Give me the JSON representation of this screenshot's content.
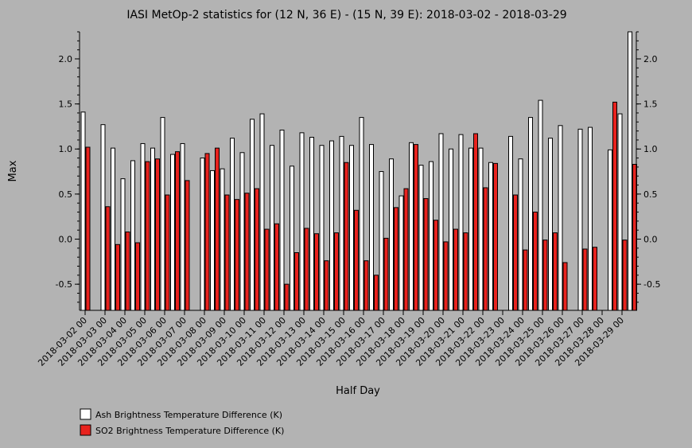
{
  "chart_data": {
    "type": "bar",
    "title": "IASI MetOp-2 statistics for (12 N, 36 E) - (15 N, 39 E): 2018-03-02 - 2018-03-29",
    "xlabel": "Half Day",
    "ylabel": "Max",
    "ylim": [
      -0.79,
      2.3
    ],
    "yticks": [
      -0.5,
      0.0,
      0.5,
      1.0,
      1.5,
      2.0
    ],
    "ytick_labels": [
      "-0.5",
      "0.0",
      "0.5",
      "1.0",
      "1.5",
      "2.0"
    ],
    "grid": false,
    "legend_position": "bottom-left",
    "categories": [
      "2018-03-02 00",
      "2018-03-02 12",
      "2018-03-03 00",
      "2018-03-03 12",
      "2018-03-04 00",
      "2018-03-04 12",
      "2018-03-05 00",
      "2018-03-05 12",
      "2018-03-06 00",
      "2018-03-06 12",
      "2018-03-07 00",
      "2018-03-07 12",
      "2018-03-08 00",
      "2018-03-08 12",
      "2018-03-09 00",
      "2018-03-09 12",
      "2018-03-10 00",
      "2018-03-10 12",
      "2018-03-11 00",
      "2018-03-11 12",
      "2018-03-12 00",
      "2018-03-12 12",
      "2018-03-13 00",
      "2018-03-13 12",
      "2018-03-14 00",
      "2018-03-14 12",
      "2018-03-15 00",
      "2018-03-15 12",
      "2018-03-16 00",
      "2018-03-16 12",
      "2018-03-17 00",
      "2018-03-17 12",
      "2018-03-18 00",
      "2018-03-18 12",
      "2018-03-19 00",
      "2018-03-19 12",
      "2018-03-20 00",
      "2018-03-20 12",
      "2018-03-21 00",
      "2018-03-21 12",
      "2018-03-22 00",
      "2018-03-22 12",
      "2018-03-23 00",
      "2018-03-23 12",
      "2018-03-24 00",
      "2018-03-24 12",
      "2018-03-25 00",
      "2018-03-25 12",
      "2018-03-26 00",
      "2018-03-26 12",
      "2018-03-27 00",
      "2018-03-27 12",
      "2018-03-28 00",
      "2018-03-28 12",
      "2018-03-29 00",
      "2018-03-29 12"
    ],
    "tick_labels": [
      "2018-03-02 00",
      "2018-03-03 00",
      "2018-03-04 00",
      "2018-03-05 00",
      "2018-03-06 00",
      "2018-03-07 00",
      "2018-03-08 00",
      "2018-03-09 00",
      "2018-03-10 00",
      "2018-03-11 00",
      "2018-03-12 00",
      "2018-03-13 00",
      "2018-03-14 00",
      "2018-03-15 00",
      "2018-03-16 00",
      "2018-03-17 00",
      "2018-03-18 00",
      "2018-03-19 00",
      "2018-03-20 00",
      "2018-03-21 00",
      "2018-03-22 00",
      "2018-03-23 00",
      "2018-03-24 00",
      "2018-03-25 00",
      "2018-03-26 00",
      "2018-03-27 00",
      "2018-03-28 00",
      "2018-03-29 00"
    ],
    "series": [
      {
        "name": "Ash Brightness Temperature Difference (K)",
        "color": "#ffffff",
        "values": [
          1.41,
          null,
          1.27,
          1.01,
          0.67,
          0.87,
          1.06,
          1.01,
          1.35,
          0.94,
          1.06,
          null,
          0.9,
          0.76,
          0.78,
          1.12,
          0.96,
          1.33,
          1.39,
          1.04,
          1.21,
          0.81,
          1.18,
          1.13,
          1.04,
          1.09,
          1.14,
          1.04,
          1.35,
          1.05,
          0.75,
          0.89,
          0.48,
          1.07,
          0.82,
          0.86,
          1.17,
          1.0,
          1.16,
          1.01,
          1.01,
          0.85,
          null,
          1.14,
          0.89,
          1.35,
          1.54,
          1.12,
          1.26,
          null,
          1.22,
          1.24,
          null,
          0.99,
          1.39,
          2.3
        ]
      },
      {
        "name": "SO2 Brightness Temperature Difference (K)",
        "color": "#e8221e",
        "values": [
          1.02,
          null,
          0.36,
          -0.06,
          0.08,
          -0.04,
          0.86,
          0.89,
          0.49,
          0.97,
          0.65,
          null,
          0.95,
          1.01,
          0.49,
          0.44,
          0.51,
          0.56,
          0.11,
          0.17,
          -0.5,
          -0.15,
          0.12,
          0.06,
          -0.24,
          0.07,
          0.85,
          0.32,
          -0.24,
          -0.4,
          0.01,
          0.35,
          0.56,
          1.05,
          0.45,
          0.21,
          -0.03,
          0.11,
          0.07,
          1.17,
          0.57,
          0.84,
          null,
          0.49,
          -0.12,
          0.3,
          -0.01,
          0.07,
          -0.26,
          null,
          -0.11,
          -0.09,
          null,
          1.52,
          -0.01,
          0.83
        ]
      }
    ]
  }
}
